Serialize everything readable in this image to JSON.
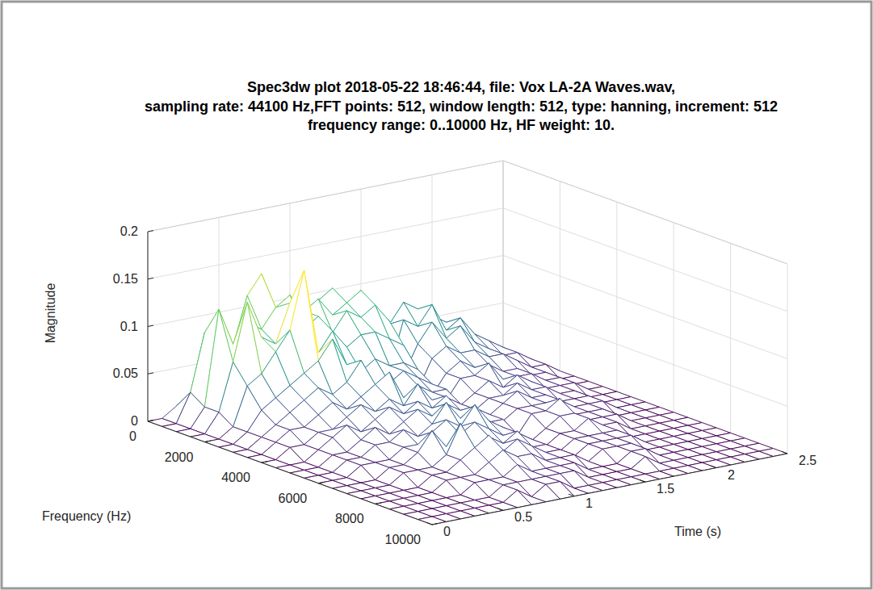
{
  "chart_data": {
    "type": "mesh",
    "title": [
      "Spec3dw plot 2018-05-22 18:46:44, file: Vox LA-2A Waves.wav,",
      "sampling rate: 44100 Hz,FFT points: 512, window length: 512, type: hanning, increment: 512",
      "frequency range: 0..10000 Hz, HF weight: 10."
    ],
    "x_label": "Time (s)",
    "y_label": "Frequency (Hz)",
    "z_label": "Magnitude",
    "x": [
      0,
      0.1,
      0.2,
      0.3,
      0.4,
      0.5,
      0.6,
      0.7,
      0.8,
      0.9,
      1,
      1.1,
      1.2,
      1.3,
      1.4,
      1.5,
      1.6,
      1.7,
      1.8,
      1.9,
      2,
      2.1,
      2.2,
      2.3,
      2.4,
      2.5
    ],
    "y": [
      0,
      500,
      1000,
      1500,
      2000,
      2500,
      3000,
      3500,
      4000,
      4500,
      5000,
      5500,
      6000,
      6500,
      7000,
      7500,
      8000,
      8500,
      9000,
      9500,
      10000
    ],
    "z": [
      [
        0,
        0,
        0.01,
        0.02,
        0.02,
        0.01,
        0.02,
        0.03,
        0.02,
        0.02,
        0.03,
        0.02,
        0.03,
        0.02,
        0.02,
        0.01,
        0.02,
        0.02,
        0.01,
        0.02,
        0.01,
        0.01,
        0.01,
        0,
        0,
        0
      ],
      [
        0,
        0,
        0.03,
        0.09,
        0.11,
        0.07,
        0.12,
        0.14,
        0.1,
        0.08,
        0.09,
        0.1,
        0.11,
        0.09,
        0.1,
        0.02,
        0.06,
        0.08,
        0.07,
        0.06,
        0.05,
        0.04,
        0.03,
        0.02,
        0.01,
        0
      ],
      [
        0,
        0,
        0.02,
        0.12,
        0.08,
        0.1,
        0.09,
        0.11,
        0.12,
        0.1,
        0.11,
        0.09,
        0.1,
        0.11,
        0.09,
        0.02,
        0.07,
        0.06,
        0.08,
        0.05,
        0.06,
        0.04,
        0.03,
        0.02,
        0.01,
        0
      ],
      [
        0,
        0,
        0.02,
        0.07,
        0.13,
        0.09,
        0.08,
        0.12,
        0.09,
        0.1,
        0.08,
        0.1,
        0.09,
        0.1,
        0.08,
        0.02,
        0.05,
        0.07,
        0.05,
        0.06,
        0.04,
        0.03,
        0.02,
        0.02,
        0.01,
        0
      ],
      [
        0,
        0,
        0.01,
        0.05,
        0.06,
        0.08,
        0.1,
        0.16,
        0.07,
        0.09,
        0.07,
        0.08,
        0.08,
        0.07,
        0.06,
        0.01,
        0.04,
        0.05,
        0.04,
        0.04,
        0.03,
        0.03,
        0.02,
        0.01,
        0.01,
        0
      ],
      [
        0,
        0,
        0.01,
        0.03,
        0.04,
        0.05,
        0.06,
        0.07,
        0.09,
        0.06,
        0.05,
        0.06,
        0.05,
        0.05,
        0.04,
        0.01,
        0.03,
        0.04,
        0.03,
        0.03,
        0.02,
        0.02,
        0.01,
        0.01,
        0,
        0
      ],
      [
        0,
        0,
        0.01,
        0.02,
        0.03,
        0.04,
        0.05,
        0.04,
        0.05,
        0.07,
        0.04,
        0.04,
        0.05,
        0.04,
        0.03,
        0.01,
        0.03,
        0.03,
        0.04,
        0.02,
        0.02,
        0.02,
        0.01,
        0.01,
        0,
        0
      ],
      [
        0,
        0,
        0.01,
        0.02,
        0.02,
        0.03,
        0.04,
        0.03,
        0.04,
        0.05,
        0.06,
        0.03,
        0.04,
        0.03,
        0.03,
        0.01,
        0.02,
        0.03,
        0.02,
        0.03,
        0.02,
        0.01,
        0.01,
        0.01,
        0,
        0
      ],
      [
        0,
        0,
        0.01,
        0.01,
        0.02,
        0.02,
        0.03,
        0.04,
        0.03,
        0.04,
        0.03,
        0.05,
        0.03,
        0.03,
        0.02,
        0.01,
        0.02,
        0.02,
        0.03,
        0.02,
        0.02,
        0.01,
        0.01,
        0,
        0,
        0
      ],
      [
        0,
        0,
        0,
        0.01,
        0.02,
        0.03,
        0.02,
        0.03,
        0.04,
        0.03,
        0.04,
        0.03,
        0.04,
        0.02,
        0.02,
        0.01,
        0.02,
        0.03,
        0.02,
        0.02,
        0.01,
        0.01,
        0.01,
        0,
        0,
        0
      ],
      [
        0,
        0,
        0,
        0.01,
        0.01,
        0.02,
        0.03,
        0.02,
        0.03,
        0.04,
        0.03,
        0.04,
        0.03,
        0.03,
        0.02,
        0.01,
        0.02,
        0.02,
        0.02,
        0.02,
        0.01,
        0.01,
        0.01,
        0,
        0,
        0
      ],
      [
        0,
        0,
        0,
        0.01,
        0.01,
        0.02,
        0.02,
        0.03,
        0.02,
        0.03,
        0.05,
        0.03,
        0.04,
        0.02,
        0.02,
        0,
        0.02,
        0.02,
        0.03,
        0.01,
        0.01,
        0.01,
        0,
        0,
        0,
        0
      ],
      [
        0,
        0,
        0,
        0.01,
        0.01,
        0.01,
        0.02,
        0.02,
        0.03,
        0.04,
        0.03,
        0.05,
        0.03,
        0.02,
        0.01,
        0,
        0.01,
        0.02,
        0.02,
        0.01,
        0.01,
        0.01,
        0,
        0,
        0,
        0
      ],
      [
        0,
        0,
        0,
        0,
        0.01,
        0.01,
        0.02,
        0.04,
        0.02,
        0.03,
        0.04,
        0.03,
        0.02,
        0.02,
        0.01,
        0,
        0.01,
        0.01,
        0.02,
        0.01,
        0.01,
        0,
        0,
        0,
        0,
        0
      ],
      [
        0,
        0,
        0,
        0,
        0.01,
        0.01,
        0.01,
        0.02,
        0.05,
        0.02,
        0.03,
        0.02,
        0.03,
        0.01,
        0.01,
        0,
        0.01,
        0.01,
        0.01,
        0.01,
        0,
        0,
        0,
        0,
        0,
        0
      ],
      [
        0,
        0,
        0,
        0,
        0,
        0.01,
        0.01,
        0.02,
        0.03,
        0.04,
        0.02,
        0.03,
        0.02,
        0.01,
        0.01,
        0,
        0.01,
        0.01,
        0.01,
        0.01,
        0,
        0,
        0,
        0,
        0,
        0
      ],
      [
        0,
        0,
        0,
        0,
        0,
        0.01,
        0.01,
        0.01,
        0.02,
        0.03,
        0.02,
        0.02,
        0.01,
        0.01,
        0.01,
        0,
        0.01,
        0.01,
        0.01,
        0,
        0,
        0,
        0,
        0,
        0,
        0
      ],
      [
        0,
        0,
        0,
        0,
        0,
        0,
        0.01,
        0.01,
        0.01,
        0.02,
        0.01,
        0.01,
        0.01,
        0.01,
        0,
        0,
        0,
        0.01,
        0.01,
        0,
        0,
        0,
        0,
        0,
        0,
        0
      ],
      [
        0,
        0,
        0,
        0,
        0,
        0,
        0,
        0.01,
        0.01,
        0.01,
        0.01,
        0.01,
        0.01,
        0,
        0,
        0,
        0,
        0.01,
        0,
        0,
        0,
        0,
        0,
        0,
        0,
        0
      ],
      [
        0,
        0,
        0,
        0,
        0,
        0,
        0,
        0.01,
        0,
        0.01,
        0.01,
        0,
        0,
        0,
        0,
        0,
        0,
        0,
        0,
        0,
        0,
        0,
        0,
        0,
        0,
        0
      ],
      [
        0,
        0,
        0,
        0,
        0,
        0,
        0,
        0,
        0,
        0,
        0,
        0,
        0,
        0,
        0,
        0,
        0,
        0,
        0,
        0,
        0,
        0,
        0,
        0,
        0,
        0
      ]
    ],
    "xlim": [
      0,
      2.5
    ],
    "ylim": [
      0,
      10000
    ],
    "zlim": [
      0,
      0.2
    ],
    "xticks": [
      0,
      0.5,
      1,
      1.5,
      2,
      2.5
    ],
    "yticks": [
      0,
      2000,
      4000,
      6000,
      8000,
      10000
    ],
    "zticks": [
      0,
      0.05,
      0.1,
      0.15,
      0.2
    ],
    "grid": true
  }
}
